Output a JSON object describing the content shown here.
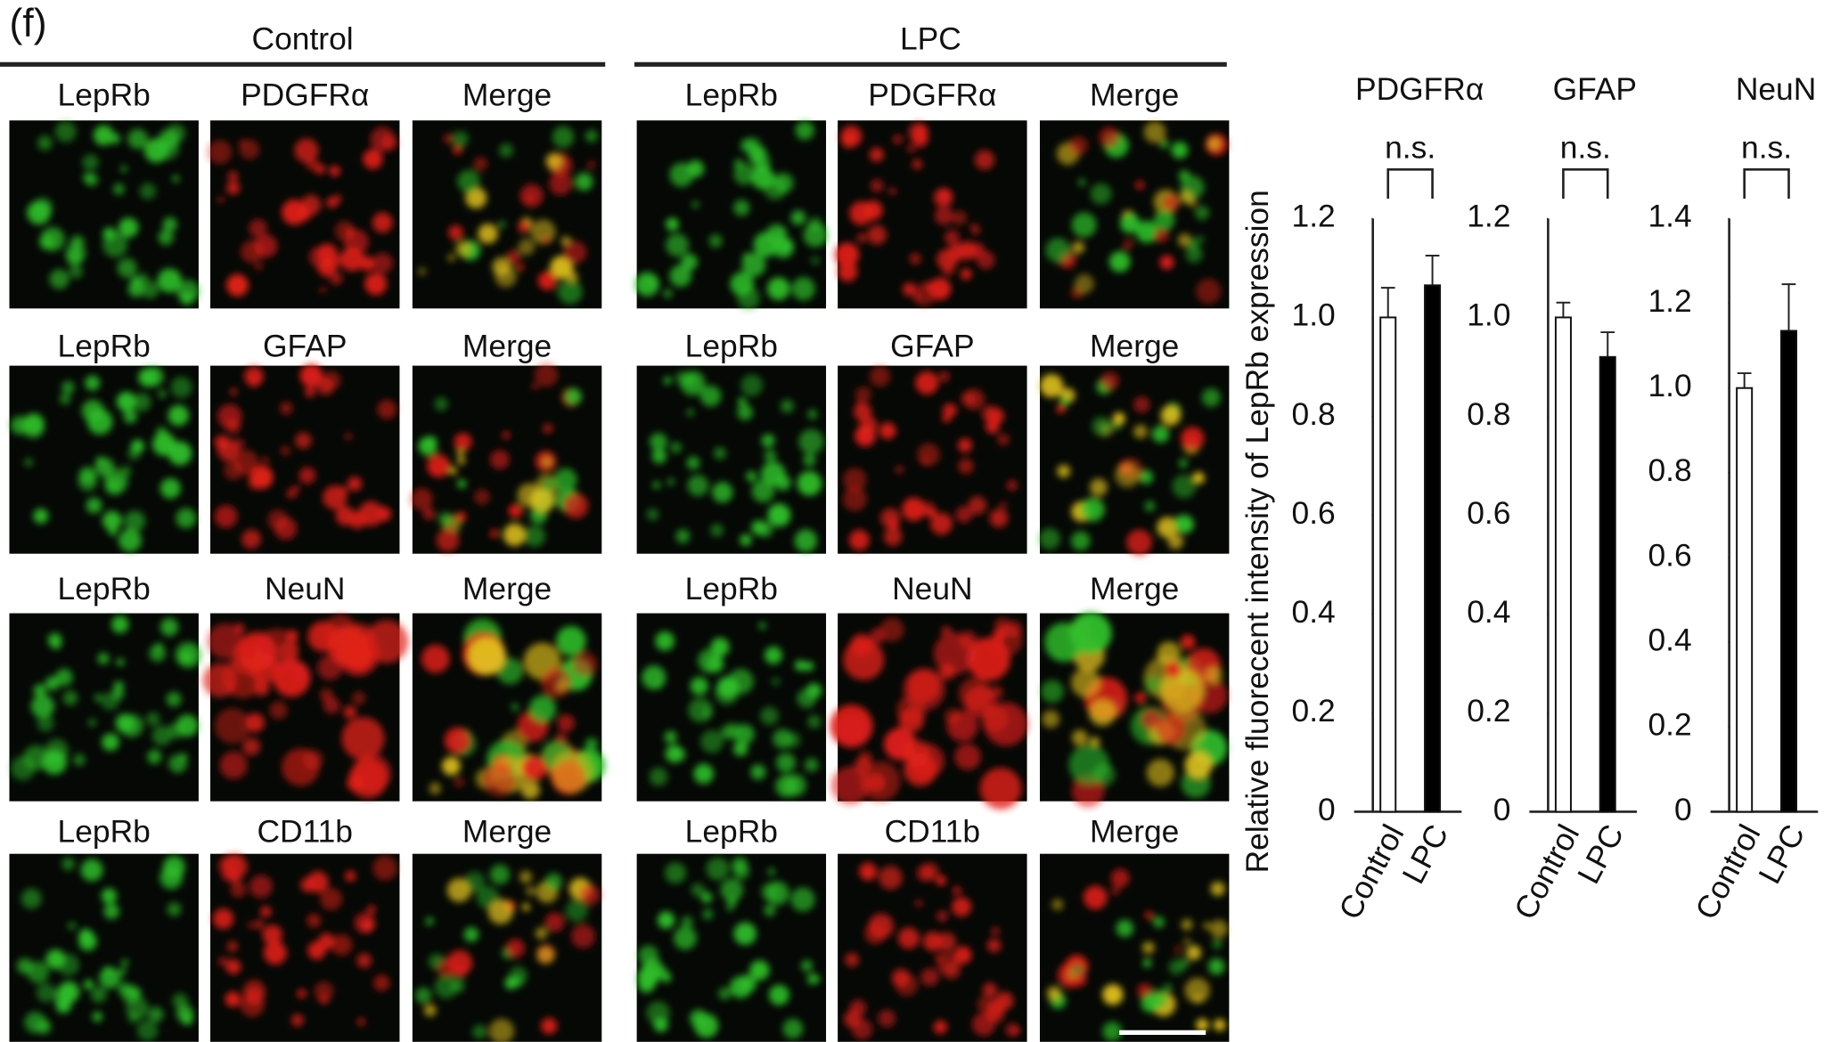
{
  "panel_label": "(f)",
  "image_groups": [
    {
      "title": "Control",
      "rows": [
        [
          "LepRb",
          "PDGFRα",
          "Merge"
        ],
        [
          "LepRb",
          "GFAP",
          "Merge"
        ],
        [
          "LepRb",
          "NeuN",
          "Merge"
        ],
        [
          "LepRb",
          "CD11b",
          "Merge"
        ]
      ]
    },
    {
      "title": "LPC",
      "rows": [
        [
          "LepRb",
          "PDGFRα",
          "Merge"
        ],
        [
          "LepRb",
          "GFAP",
          "Merge"
        ],
        [
          "LepRb",
          "NeuN",
          "Merge"
        ],
        [
          "LepRb",
          "CD11b",
          "Merge"
        ]
      ]
    }
  ],
  "chart_data": [
    {
      "type": "bar",
      "title": "PDGFRα",
      "ylabel": "Relative fluorecent intensity of LepRb expression",
      "categories": [
        "Control",
        "LPC"
      ],
      "values": [
        1.0,
        1.065
      ],
      "errors": [
        0.06,
        0.06
      ],
      "colors": [
        "#ffffff",
        "#000000"
      ],
      "ylim": [
        0,
        1.2
      ],
      "yticks": [
        0,
        0.2,
        0.4,
        0.6,
        0.8,
        {
          "value": 1,
          "label": "1.0"
        },
        1.2
      ],
      "annotation": "n.s."
    },
    {
      "type": "bar",
      "title": "GFAP",
      "categories": [
        "Control",
        "LPC"
      ],
      "values": [
        1.0,
        0.92
      ],
      "errors": [
        0.03,
        0.05
      ],
      "colors": [
        "#ffffff",
        "#000000"
      ],
      "ylim": [
        0,
        1.2
      ],
      "yticks": [
        0,
        0.2,
        0.4,
        0.6,
        0.8,
        {
          "value": 1,
          "label": "1.0"
        },
        1.2
      ],
      "annotation": "n.s."
    },
    {
      "type": "bar",
      "title": "NeuN",
      "categories": [
        "Control",
        "LPC"
      ],
      "values": [
        1.0,
        1.135
      ],
      "errors": [
        0.035,
        0.11
      ],
      "colors": [
        "#ffffff",
        "#000000"
      ],
      "ylim": [
        0,
        1.4
      ],
      "yticks": [
        0,
        0.2,
        0.4,
        0.6,
        0.8,
        {
          "value": 1,
          "label": "1.0"
        },
        1.2,
        1.4
      ],
      "annotation": "n.s."
    }
  ]
}
